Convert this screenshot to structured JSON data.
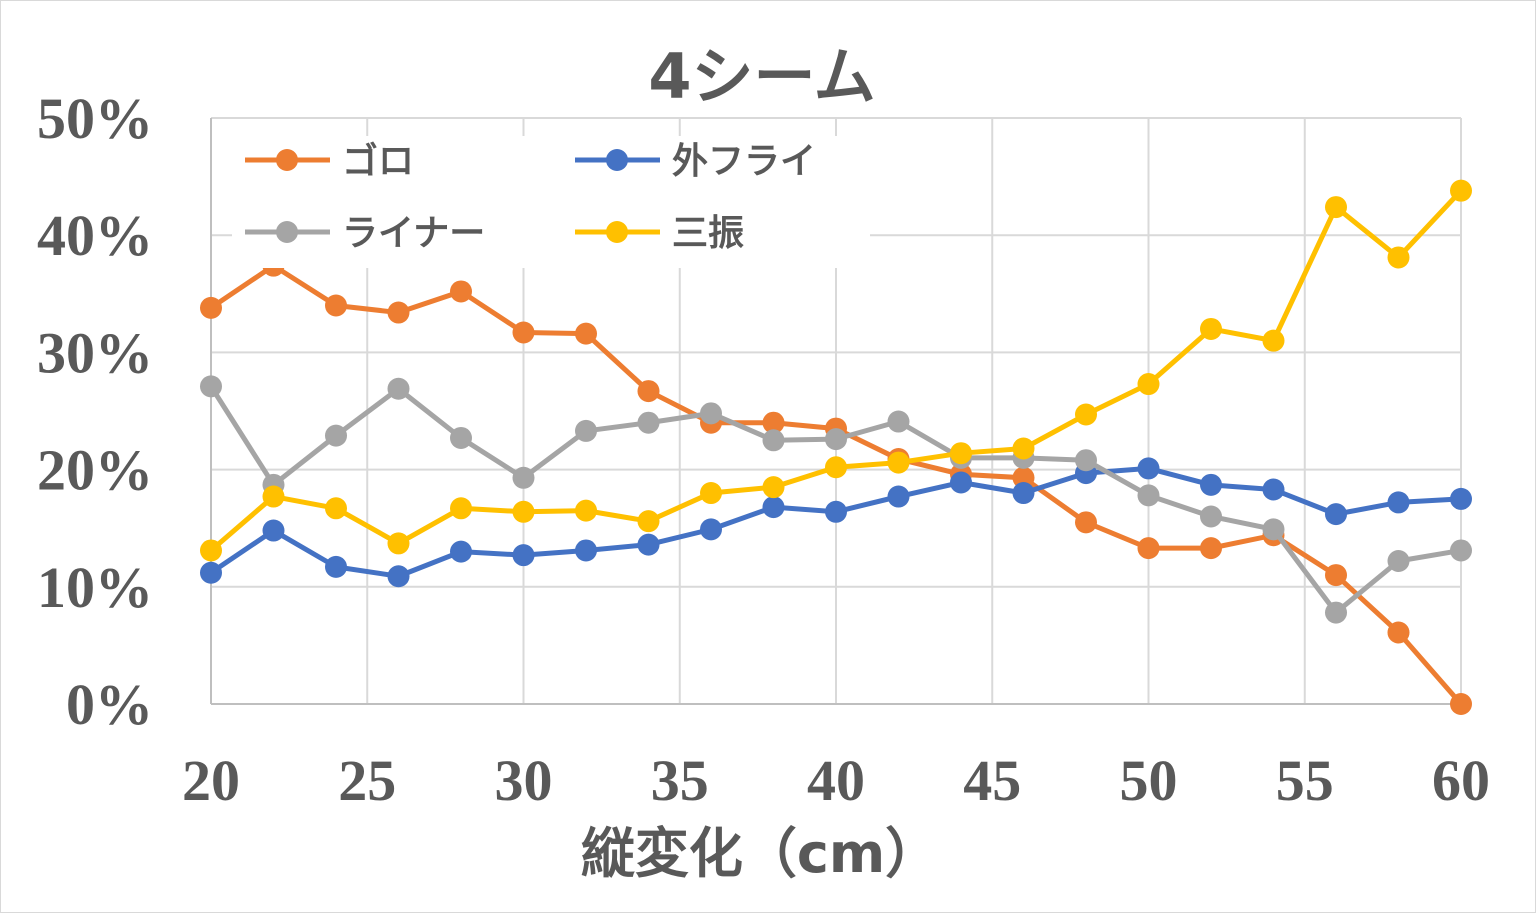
{
  "chart_data": {
    "type": "line",
    "title": "4シーム",
    "xlabel": "縦変化（cm）",
    "ylabel": "",
    "xlim": [
      20,
      60
    ],
    "ylim": [
      0,
      50
    ],
    "x_ticks": [
      20,
      25,
      30,
      35,
      40,
      45,
      50,
      55,
      60
    ],
    "y_ticks": [
      "0%",
      "10%",
      "20%",
      "30%",
      "40%",
      "50%"
    ],
    "grid": true,
    "legend_position": "top-left",
    "x": [
      20,
      22,
      24,
      26,
      28,
      30,
      32,
      34,
      36,
      38,
      40,
      42,
      44,
      46,
      48,
      50,
      52,
      54,
      56,
      58,
      60
    ],
    "series": [
      {
        "name": "ゴロ",
        "color": "#ED7D31",
        "values": [
          33.8,
          37.4,
          34.0,
          33.4,
          35.2,
          31.7,
          31.6,
          26.7,
          24.0,
          24.0,
          23.5,
          20.9,
          19.6,
          19.3,
          15.5,
          13.3,
          13.3,
          14.4,
          11.0,
          6.1,
          0.0
        ]
      },
      {
        "name": "外フライ",
        "color": "#4472C4",
        "values": [
          11.2,
          14.8,
          11.7,
          10.9,
          13.0,
          12.7,
          13.1,
          13.6,
          14.9,
          16.8,
          16.4,
          17.7,
          18.9,
          18.0,
          19.7,
          20.1,
          18.7,
          18.3,
          16.2,
          17.2,
          17.5
        ]
      },
      {
        "name": "ライナー",
        "color": "#A5A5A5",
        "values": [
          27.1,
          18.7,
          22.9,
          26.9,
          22.7,
          19.3,
          23.3,
          24.0,
          24.8,
          22.5,
          22.6,
          24.1,
          21.0,
          21.0,
          20.8,
          17.8,
          16.0,
          14.9,
          7.8,
          12.2,
          13.1
        ]
      },
      {
        "name": "三振",
        "color": "#FFC000",
        "values": [
          13.1,
          17.7,
          16.7,
          13.7,
          16.7,
          16.4,
          16.5,
          15.6,
          18.0,
          18.5,
          20.2,
          20.6,
          21.4,
          21.8,
          24.7,
          27.3,
          32.0,
          31.0,
          42.4,
          38.1,
          43.8
        ]
      }
    ]
  }
}
